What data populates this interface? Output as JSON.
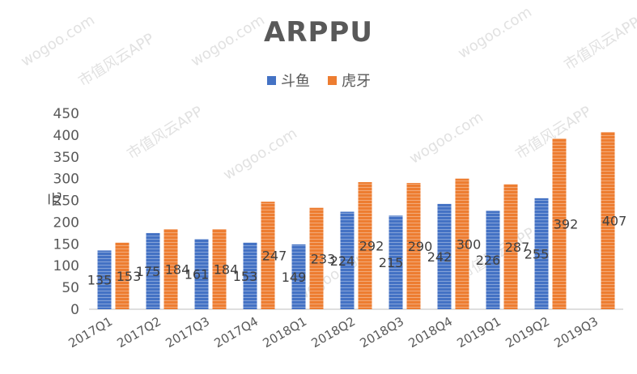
{
  "chart_data": {
    "type": "bar",
    "title": "ARPPU",
    "ylabel": "元",
    "xlabel": "",
    "categories": [
      "2017Q1",
      "2017Q2",
      "2017Q3",
      "2017Q4",
      "2018Q1",
      "2018Q2",
      "2018Q3",
      "2018Q4",
      "2019Q1",
      "2019Q2",
      "2019Q3"
    ],
    "series": [
      {
        "name": "斗鱼",
        "color": "#4472C4",
        "values": [
          135,
          175,
          161,
          153,
          149,
          224,
          215,
          242,
          226,
          255,
          null
        ]
      },
      {
        "name": "虎牙",
        "color": "#ED7D31",
        "values": [
          153,
          184,
          184,
          247,
          233,
          292,
          290,
          300,
          287,
          392,
          407
        ]
      }
    ],
    "ylim": [
      0,
      450
    ],
    "yticks": [
      0,
      50,
      100,
      150,
      200,
      250,
      300,
      350,
      400,
      450
    ],
    "grid": false,
    "legend_position": "top"
  },
  "watermarks": {
    "site": "wogoo.com",
    "app": "市值风云APP"
  }
}
